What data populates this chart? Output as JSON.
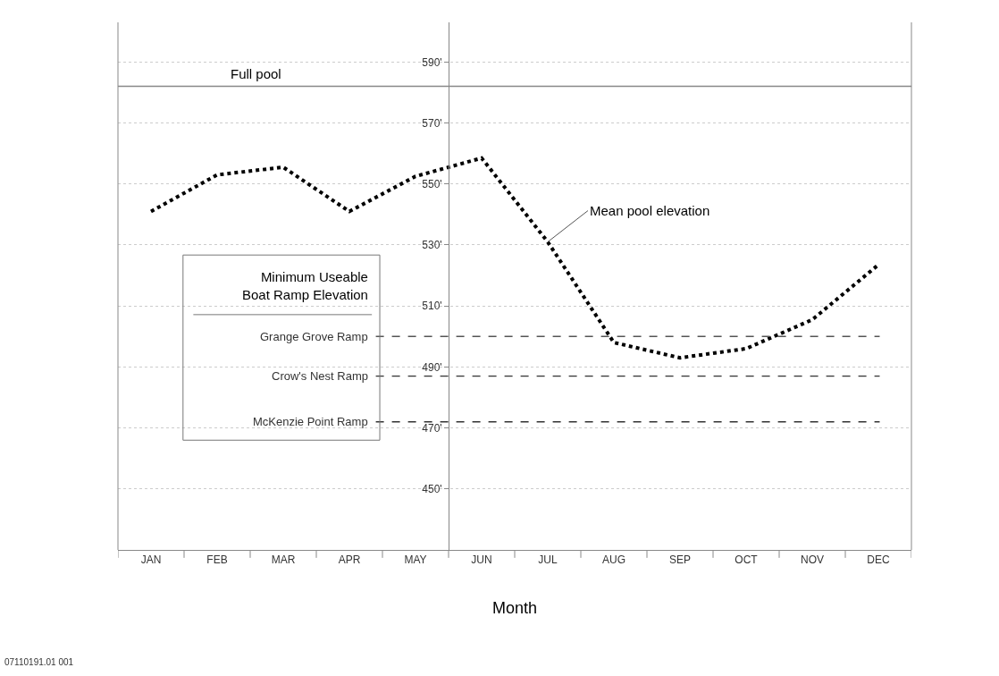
{
  "chart_data": {
    "type": "line",
    "xlabel": "Month",
    "categories": [
      "JAN",
      "FEB",
      "MAR",
      "APR",
      "MAY",
      "JUN",
      "JUL",
      "AUG",
      "SEP",
      "OCT",
      "NOV",
      "DEC"
    ],
    "series": [
      {
        "name": "Mean pool elevation",
        "color": "#000000",
        "values": [
          541,
          553,
          555.5,
          541,
          552.5,
          558.5,
          531,
          498,
          493,
          496,
          505.5,
          523.5
        ]
      }
    ],
    "line_style": "dotted",
    "marker": "none",
    "ylim": [
      430,
      603
    ],
    "yticks": [
      {
        "value": 450,
        "label": "450'"
      },
      {
        "value": 470,
        "label": "470'"
      },
      {
        "value": 490,
        "label": "490'"
      },
      {
        "value": 510,
        "label": "510'"
      },
      {
        "value": 530,
        "label": "530'"
      },
      {
        "value": 550,
        "label": "550'"
      },
      {
        "value": 570,
        "label": "570'"
      },
      {
        "value": 590,
        "label": "590'"
      }
    ],
    "grid": "y",
    "legend": false,
    "legend_title": "Minimum Useable Boat Ramp Elevation",
    "ref_lines": [
      {
        "axis": "y",
        "value": 582,
        "label": "Full pool",
        "color": "#888888",
        "line_style": "solid"
      },
      {
        "axis": "y",
        "value": 500,
        "label": "Grange Grove Ramp",
        "color": "#555555",
        "line_style": "dashed"
      },
      {
        "axis": "y",
        "value": 487,
        "label": "Crow's Nest Ramp",
        "color": "#333333",
        "line_style": "dashed"
      },
      {
        "axis": "y",
        "value": 472,
        "label": "McKenzie Point Ramp",
        "color": "#333333",
        "line_style": "dashed"
      }
    ],
    "annotations": [
      "07110191.01 001"
    ]
  }
}
